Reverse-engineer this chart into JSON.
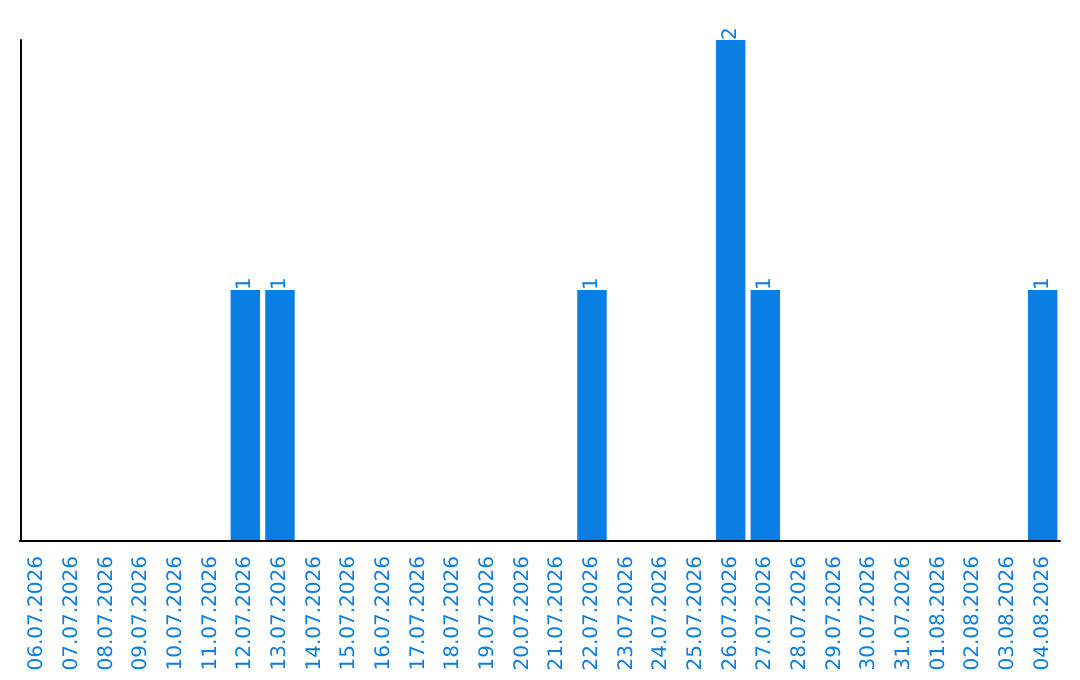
{
  "chart_data": {
    "type": "bar",
    "categories": [
      "06.07.2026",
      "07.07.2026",
      "08.07.2026",
      "09.07.2026",
      "10.07.2026",
      "11.07.2026",
      "12.07.2026",
      "13.07.2026",
      "14.07.2026",
      "15.07.2026",
      "16.07.2026",
      "17.07.2026",
      "18.07.2026",
      "19.07.2026",
      "20.07.2026",
      "21.07.2026",
      "22.07.2026",
      "23.07.2026",
      "24.07.2026",
      "25.07.2026",
      "26.07.2026",
      "27.07.2026",
      "28.07.2026",
      "29.07.2026",
      "30.07.2026",
      "31.07.2026",
      "01.08.2026",
      "02.08.2026",
      "03.08.2026",
      "04.08.2026"
    ],
    "values": [
      0,
      0,
      0,
      0,
      0,
      0,
      1,
      1,
      0,
      0,
      0,
      0,
      0,
      0,
      0,
      0,
      1,
      0,
      0,
      0,
      2,
      1,
      0,
      0,
      0,
      0,
      0,
      0,
      0,
      1
    ],
    "value_labels": [
      null,
      null,
      null,
      null,
      null,
      null,
      "1",
      "1",
      null,
      null,
      null,
      null,
      null,
      null,
      null,
      null,
      "1",
      null,
      null,
      null,
      "2",
      "1",
      null,
      null,
      null,
      null,
      null,
      null,
      null,
      "1"
    ],
    "color": "#0a7ee3",
    "tick_labels": "x"
  }
}
